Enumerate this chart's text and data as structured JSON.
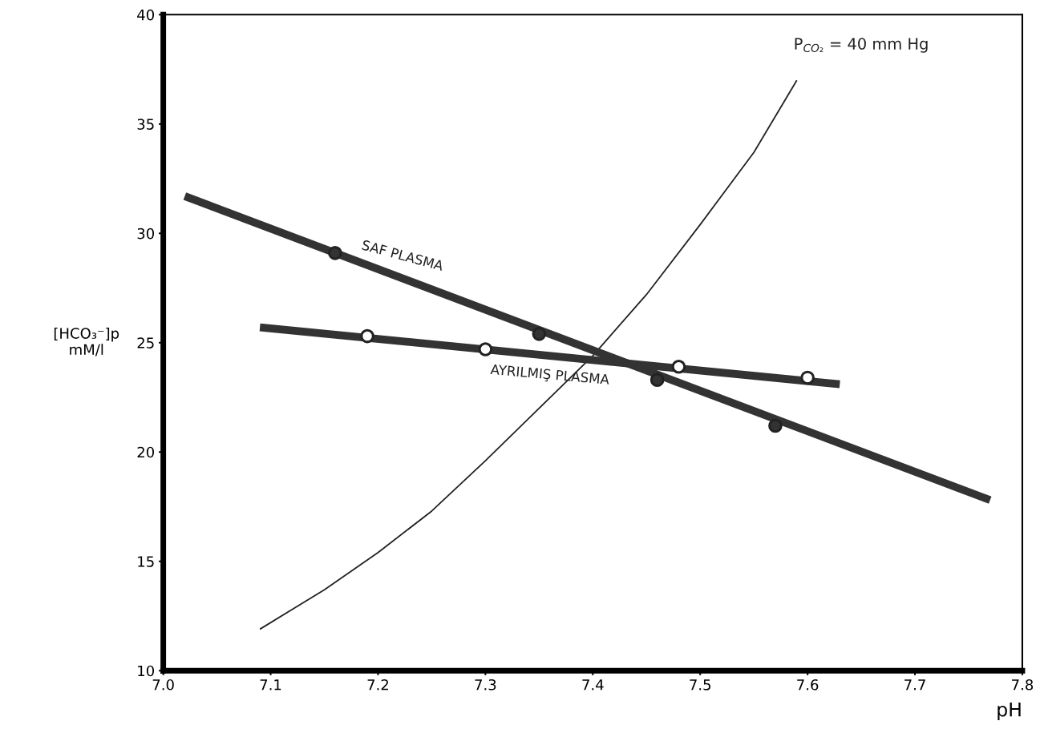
{
  "chart_data": {
    "type": "line",
    "xlabel": "pH",
    "ylabel": "[HCO₃⁻]p\nmM/l",
    "xlim": [
      7.0,
      7.8
    ],
    "xticks": [
      {
        "value": 7.0,
        "label": "7.0"
      },
      7.1,
      7.2,
      7.3,
      7.4,
      7.5,
      7.6,
      7.7,
      7.8
    ],
    "ylim": [
      10,
      40
    ],
    "yticks": [
      10,
      15,
      20,
      25,
      30,
      35,
      40
    ],
    "grid": false,
    "legend": false,
    "series": [
      {
        "name": "SAF PLASMA",
        "color": "#333333",
        "x": [
          7.02,
          7.77
        ],
        "values": [
          31.7,
          17.8
        ]
      },
      {
        "name": "AYRILMIŞ PLASMA",
        "color": "#333333",
        "x": [
          7.09,
          7.63
        ],
        "values": [
          25.7,
          23.1
        ]
      },
      {
        "name": "P$_{CO₂}$ = 40 mm Hg",
        "color": "#222222",
        "x": [
          7.09,
          7.15,
          7.2,
          7.25,
          7.3,
          7.35,
          7.4,
          7.45,
          7.5,
          7.55,
          7.59
        ],
        "values": [
          11.9,
          13.7,
          15.4,
          17.3,
          19.6,
          22.0,
          24.4,
          27.2,
          30.4,
          33.7,
          37.0
        ]
      },
      {
        "type": "scatter",
        "marker": "circle",
        "color": "#333333",
        "x": [
          7.16,
          7.35,
          7.46,
          7.57
        ],
        "values": [
          29.1,
          25.4,
          23.3,
          21.2
        ]
      },
      {
        "type": "scatter",
        "marker": "circle",
        "color": "#ffffff",
        "x": [
          7.19,
          7.3,
          7.48,
          7.6
        ],
        "values": [
          25.3,
          24.7,
          23.9,
          23.4
        ]
      }
    ]
  }
}
